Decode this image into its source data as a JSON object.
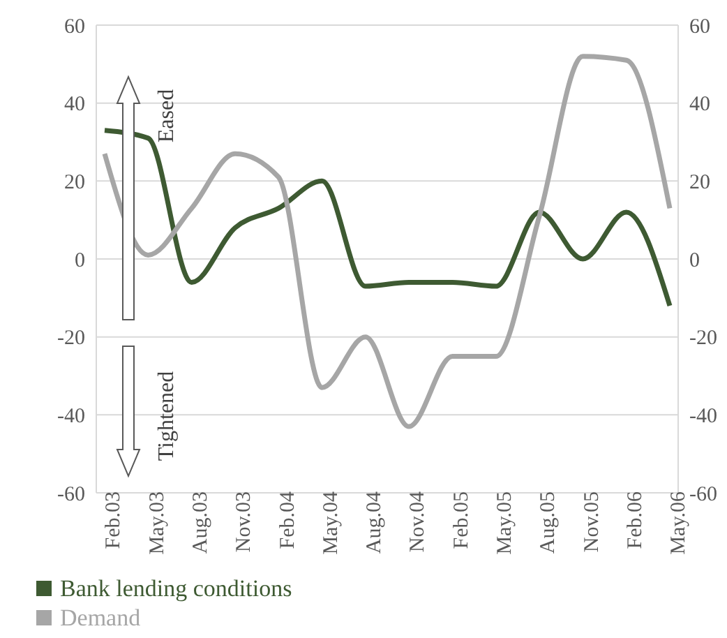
{
  "chart_data": {
    "type": "line",
    "categories": [
      "Feb.03",
      "May.03",
      "Aug.03",
      "Nov.03",
      "Feb.04",
      "May.04",
      "Aug.04",
      "Nov.04",
      "Feb.05",
      "May.05",
      "Aug.05",
      "Nov.05",
      "Feb.06",
      "May.06"
    ],
    "series": [
      {
        "name": "Bank lending conditions",
        "color": "#3e5a32",
        "values": [
          33,
          31,
          -6,
          8,
          13,
          20,
          -7,
          -6,
          -6,
          -7,
          12,
          0,
          12,
          -12
        ]
      },
      {
        "name": "Demand",
        "color": "#a6a6a6",
        "axis": "y2",
        "values": [
          27,
          1,
          13,
          27,
          21,
          -33,
          -20,
          -43,
          -25,
          -25,
          11,
          52,
          51,
          13
        ]
      }
    ],
    "ylim": [
      -60,
      60
    ],
    "yticks": [
      -60,
      -40,
      -20,
      0,
      20,
      40,
      60
    ],
    "y2lim": [
      -60,
      60
    ],
    "y2ticks": [
      -60,
      -40,
      -20,
      0,
      20,
      40,
      60
    ],
    "grid": "y",
    "legend": "bottom",
    "marker": "none",
    "line_style": "solid",
    "annotations": [
      "Eased",
      "Tightened"
    ]
  }
}
